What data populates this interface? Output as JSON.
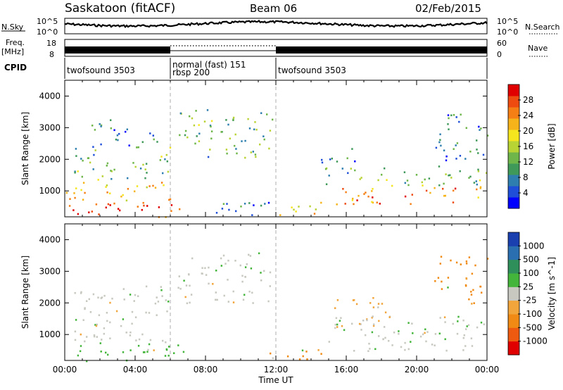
{
  "header": {
    "station": "Saskatoon (fitACF)",
    "beam": "Beam 06",
    "date": "02/Feb/2015"
  },
  "aux_labels": {
    "nsky": "N.Sky",
    "nsearch": "N.Search",
    "freq": "Freq.",
    "freq_unit": "[MHz]",
    "nave": "Nave",
    "cpid": "CPID",
    "nsky_ticks": [
      "10^5",
      "10^0"
    ],
    "nsearch_ticks": [
      "10^5",
      "10^0"
    ],
    "freq_ticks": [
      "18",
      "8"
    ],
    "nave_ticks": [
      "60",
      "0"
    ]
  },
  "cpid_segments": [
    {
      "start_h": 0,
      "end_h": 6,
      "lines": [
        "twofsound 3503"
      ]
    },
    {
      "start_h": 6,
      "end_h": 12,
      "lines": [
        "normal (fast) 151",
        "rbsp 200"
      ]
    },
    {
      "start_h": 12,
      "end_h": 24,
      "lines": [
        "twofsound 3503"
      ]
    }
  ],
  "chart_data": [
    {
      "type": "heatmap",
      "panel": "power",
      "xlabel": "",
      "ylabel": "Slant Range [km]",
      "xlim": [
        0,
        24
      ],
      "ylim": [
        180,
        4500
      ],
      "yticks": [
        "1000",
        "2000",
        "3000",
        "4000"
      ],
      "colorbar": {
        "label": "Power [dB]",
        "ticks": [
          "4",
          "8",
          "12",
          "16",
          "20",
          "24",
          "28"
        ],
        "colors": [
          "#0000ff",
          "#1f4fd8",
          "#2e7fb0",
          "#3f9a5a",
          "#6fb64a",
          "#b8d334",
          "#f5e51f",
          "#f7b41a",
          "#f57f14",
          "#ee4b10",
          "#e00000"
        ]
      },
      "regions": [
        {
          "t0": 0.0,
          "t1": 6.8,
          "r0": 180,
          "r1": 700,
          "level": 28
        },
        {
          "t0": 0.0,
          "t1": 6.0,
          "r0": 700,
          "r1": 1400,
          "level": 20
        },
        {
          "t0": 0.3,
          "t1": 6.0,
          "r0": 1400,
          "r1": 2400,
          "level": 12
        },
        {
          "t0": 1.5,
          "t1": 5.5,
          "r0": 2400,
          "r1": 3300,
          "level": 8
        },
        {
          "t0": 6.4,
          "t1": 11.8,
          "r0": 2000,
          "r1": 3600,
          "level": 12
        },
        {
          "t0": 8.0,
          "t1": 12.0,
          "r0": 180,
          "r1": 700,
          "level": 8
        },
        {
          "t0": 12.0,
          "t1": 15.0,
          "r0": 180,
          "r1": 600,
          "level": 20
        },
        {
          "t0": 14.5,
          "t1": 24.0,
          "r0": 600,
          "r1": 1200,
          "level": 24
        },
        {
          "t0": 14.5,
          "t1": 24.0,
          "r0": 1200,
          "r1": 1800,
          "level": 12
        },
        {
          "t0": 14.5,
          "t1": 16.5,
          "r0": 1800,
          "r1": 2400,
          "level": 8
        },
        {
          "t0": 21.0,
          "t1": 24.0,
          "r0": 1800,
          "r1": 3500,
          "level": 8
        }
      ]
    },
    {
      "type": "heatmap",
      "panel": "velocity",
      "xlabel": "Time UT",
      "ylabel": "Slant Range [km]",
      "xlim": [
        0,
        24
      ],
      "ylim": [
        180,
        4500
      ],
      "xticks": [
        "00:00",
        "04:00",
        "08:00",
        "12:00",
        "16:00",
        "20:00",
        "00:00"
      ],
      "yticks": [
        "1000",
        "2000",
        "3000",
        "4000"
      ],
      "colorbar": {
        "label": "Velocity [m s^-1]",
        "ticks": [
          "1000",
          "500",
          "100",
          "25",
          "-25",
          "-100",
          "-500",
          "-1000"
        ],
        "colors": [
          "#1a3fae",
          "#2a6fb0",
          "#2f8f5a",
          "#43b53a",
          "#c8c8c0",
          "#f2a53a",
          "#f08a15",
          "#ee5a10",
          "#e00000"
        ]
      },
      "regions": [
        {
          "t0": 0.0,
          "t1": 6.8,
          "r0": 180,
          "r1": 700,
          "level": 100
        },
        {
          "t0": 0.0,
          "t1": 6.0,
          "r0": 700,
          "r1": 1400,
          "level": 0
        },
        {
          "t0": 0.5,
          "t1": 6.0,
          "r0": 1400,
          "r1": 2600,
          "level": 0
        },
        {
          "t0": 6.4,
          "t1": 11.8,
          "r0": 2000,
          "r1": 3600,
          "level": 0
        },
        {
          "t0": 11.5,
          "t1": 15.0,
          "r0": 180,
          "r1": 600,
          "level": -500
        },
        {
          "t0": 14.5,
          "t1": 24.0,
          "r0": 500,
          "r1": 1600,
          "level": 0
        },
        {
          "t0": 15.0,
          "t1": 18.5,
          "r0": 1200,
          "r1": 2200,
          "level": -100
        },
        {
          "t0": 21.0,
          "t1": 24.0,
          "r0": 2000,
          "r1": 3500,
          "level": -500
        }
      ]
    }
  ]
}
